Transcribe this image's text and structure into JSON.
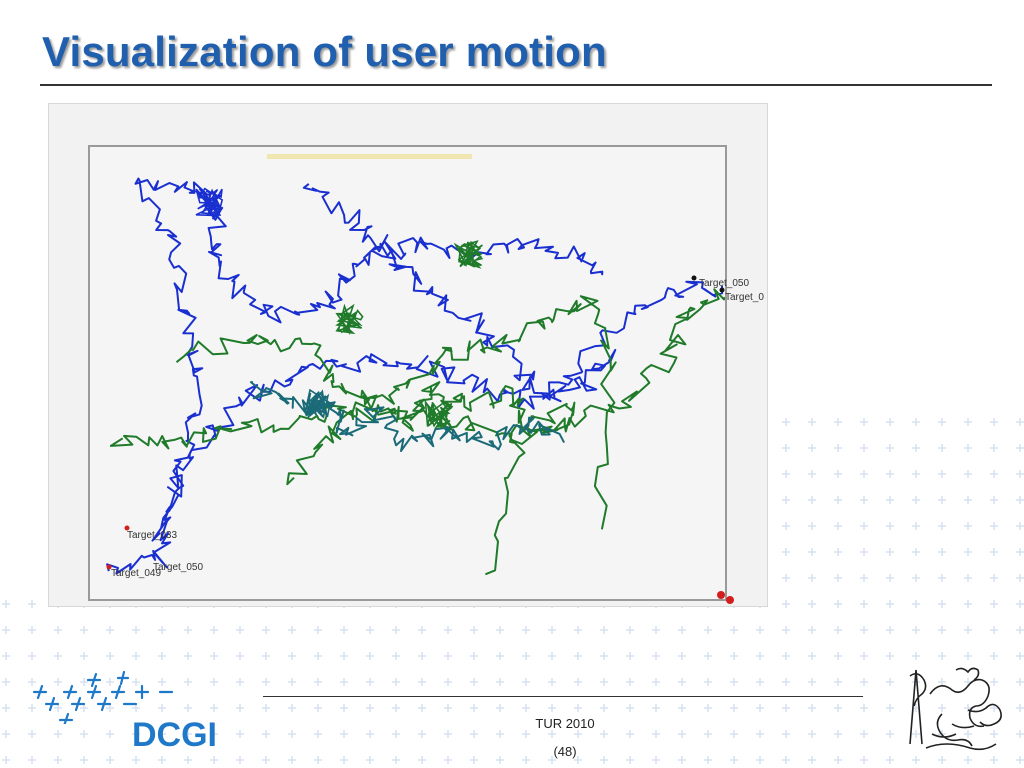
{
  "slide": {
    "title": "Visualization of user motion",
    "footer_event": "TUR 2010",
    "footer_page": "(48)"
  },
  "logo": {
    "text": "DCGI"
  },
  "visualization": {
    "target_labels": [
      "Target_050",
      "Target_0",
      "Target_033",
      "Target_049",
      "Target_050"
    ],
    "colors": {
      "path_blue": "#1a2fd0",
      "path_green": "#1f7a2a",
      "path_teal": "#1a6a78",
      "marker": "#d41e1e",
      "highlight": "#f0e6b0"
    }
  },
  "theme": {
    "accent": "#1f5fae",
    "plus_pattern": "#d7e2f0"
  }
}
